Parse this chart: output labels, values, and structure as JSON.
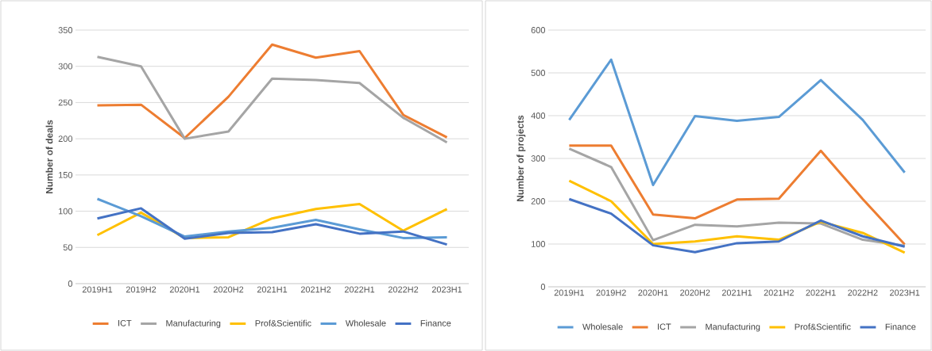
{
  "chart_data": [
    {
      "type": "line",
      "ylabel": "Number of deals",
      "categories": [
        "2019H1",
        "2019H2",
        "2020H1",
        "2020H2",
        "2021H1",
        "2021H2",
        "2022H1",
        "2022H2",
        "2023H1"
      ],
      "ylim": [
        0,
        350
      ],
      "yticks": [
        0,
        50,
        100,
        150,
        200,
        250,
        300,
        350
      ],
      "grid": "y",
      "legend": "bottom",
      "marker": "none",
      "line_style": "solid",
      "series": [
        {
          "name": "ICT",
          "color": "#ed7d31",
          "values": [
            246,
            247,
            201,
            258,
            330,
            312,
            321,
            233,
            202
          ]
        },
        {
          "name": "Manufacturing",
          "color": "#a5a5a5",
          "values": [
            313,
            300,
            200,
            210,
            283,
            281,
            277,
            229,
            195
          ]
        },
        {
          "name": "Prof&Scientific",
          "color": "#ffc000",
          "values": [
            67,
            98,
            63,
            64,
            90,
            103,
            110,
            73,
            103
          ]
        },
        {
          "name": "Wholesale",
          "color": "#5b9bd5",
          "values": [
            117,
            93,
            65,
            72,
            77,
            88,
            75,
            63,
            64
          ]
        },
        {
          "name": "Finance",
          "color": "#4472c4",
          "values": [
            90,
            104,
            62,
            70,
            71,
            82,
            69,
            72,
            54
          ]
        }
      ]
    },
    {
      "type": "line",
      "ylabel": "Number of projects",
      "categories": [
        "2019H1",
        "2019H2",
        "2020H1",
        "2020H2",
        "2021H1",
        "2021H2",
        "2022H1",
        "2022H2",
        "2023H1"
      ],
      "ylim": [
        0,
        600
      ],
      "yticks": [
        0,
        100,
        200,
        300,
        400,
        500,
        600
      ],
      "grid": "y",
      "legend": "bottom",
      "marker": "none",
      "line_style": "solid",
      "series": [
        {
          "name": "Wholesale",
          "color": "#5b9bd5",
          "values": [
            390,
            531,
            238,
            399,
            388,
            397,
            483,
            390,
            267
          ]
        },
        {
          "name": "ICT",
          "color": "#ed7d31",
          "values": [
            330,
            330,
            169,
            160,
            204,
            206,
            318,
            205,
            99
          ]
        },
        {
          "name": "Manufacturing",
          "color": "#a5a5a5",
          "values": [
            323,
            280,
            109,
            145,
            141,
            150,
            148,
            110,
            96
          ]
        },
        {
          "name": "Prof&Scientific",
          "color": "#ffc000",
          "values": [
            248,
            200,
            100,
            106,
            118,
            110,
            152,
            126,
            80
          ]
        },
        {
          "name": "Finance",
          "color": "#4472c4",
          "values": [
            205,
            171,
            97,
            81,
            102,
            106,
            155,
            118,
            94
          ]
        }
      ]
    }
  ]
}
